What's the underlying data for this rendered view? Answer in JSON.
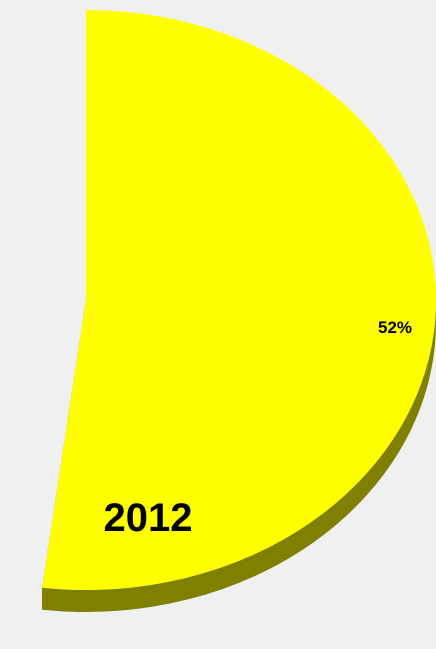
{
  "chart_data": {
    "type": "pie",
    "title": "",
    "subtitle": "2012",
    "slices": [
      {
        "label": "",
        "value": 52,
        "value_label": "52%",
        "color": "#ffff00",
        "side_color": "#808000"
      }
    ],
    "style": "3d",
    "legend": false,
    "grid": false
  },
  "colors": {
    "background": "#f0f0f0",
    "slice": "#ffff00",
    "slice_side": "#808000"
  }
}
